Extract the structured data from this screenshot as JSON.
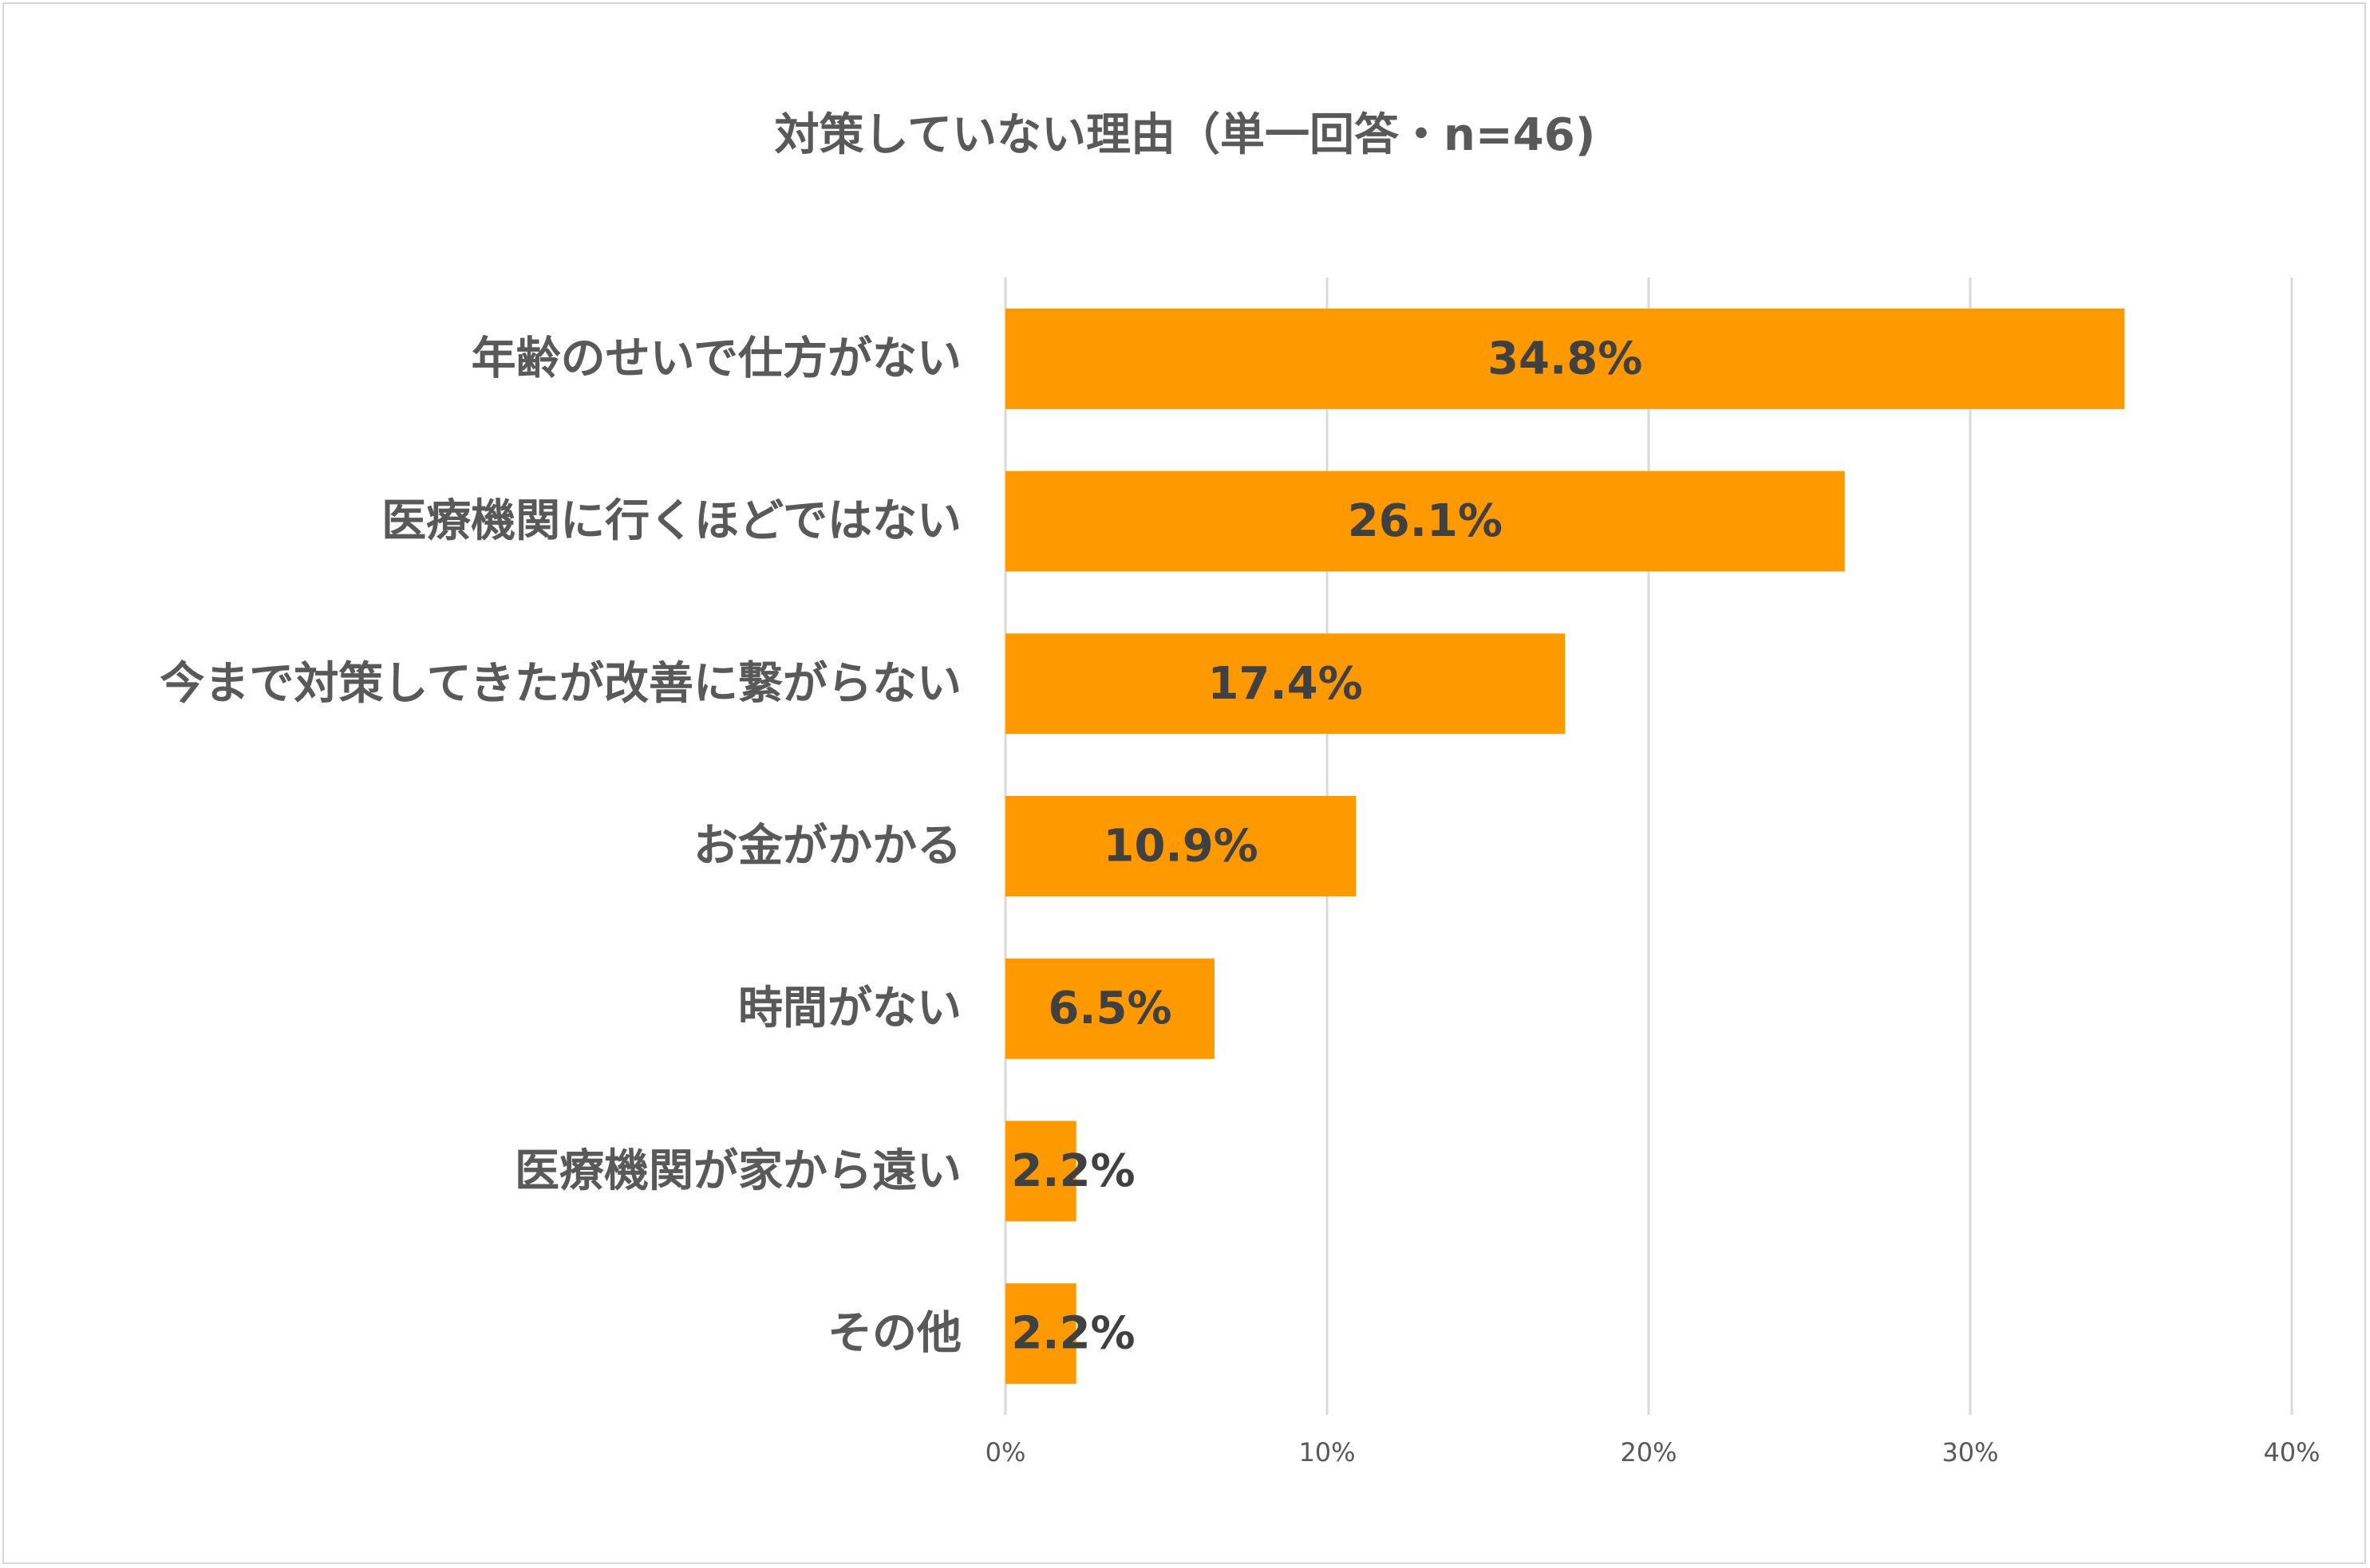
{
  "chart_data": {
    "type": "bar",
    "orientation": "horizontal",
    "title": "対策していない理由（単一回答・n=46)",
    "categories": [
      "年齢のせいで仕方がない",
      "医療機関に行くほどではない",
      "今まで対策してきたが改善に繋がらない",
      "お金がかかる",
      "時間がない",
      "医療機関が家から遠い",
      "その他"
    ],
    "values": [
      34.8,
      26.1,
      17.4,
      10.9,
      6.5,
      2.2,
      2.2
    ],
    "data_labels": [
      "34.8%",
      "26.1%",
      "17.4%",
      "10.9%",
      "6.5%",
      "2.2%",
      "2.2%"
    ],
    "xlim": [
      0,
      40
    ],
    "ticks": [
      0,
      10,
      20,
      30,
      40
    ],
    "tick_labels": [
      "0%",
      "10%",
      "20%",
      "30%",
      "40%"
    ],
    "grid": "vertical",
    "legend": "none",
    "bar_color": "#ff9900",
    "gridline_color": "#d9d9d9",
    "text_color": "#595959",
    "data_label_color": "#404040"
  }
}
